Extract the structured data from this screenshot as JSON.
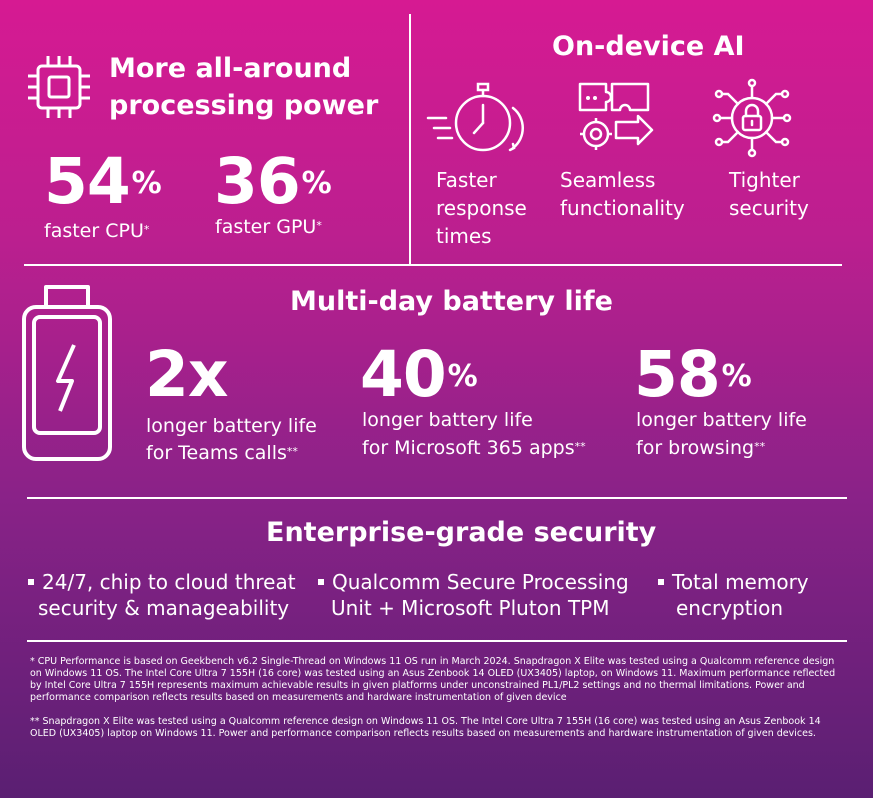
{
  "processing": {
    "title_line1": "More all-around",
    "title_line2": "processing power",
    "cpu_value": "54",
    "cpu_unit": "%",
    "cpu_label": "faster CPU",
    "cpu_mark": "*",
    "gpu_value": "36",
    "gpu_unit": "%",
    "gpu_label": "faster GPU",
    "gpu_mark": "*"
  },
  "ai": {
    "title": "On-device AI",
    "items": [
      {
        "label": "Faster response times",
        "icon": "stopwatch-icon"
      },
      {
        "label": "Seamless functionality",
        "icon": "puzzle-gear-icon"
      },
      {
        "label": "Tighter security",
        "icon": "lock-circuit-icon"
      }
    ]
  },
  "battery": {
    "title": "Multi-day battery life",
    "stats": [
      {
        "value": "2x",
        "unit": "",
        "line1": "longer battery life",
        "line2": "for Teams calls",
        "mark": "**"
      },
      {
        "value": "40",
        "unit": "%",
        "line1": "longer battery life",
        "line2": "for Microsoft 365 apps",
        "mark": "**"
      },
      {
        "value": "58",
        "unit": "%",
        "line1": "longer battery life",
        "line2": "for browsing",
        "mark": "**"
      }
    ]
  },
  "security": {
    "title": "Enterprise-grade security",
    "items": [
      {
        "line1": "24/7, chip to cloud threat",
        "line2": "security & manageability"
      },
      {
        "line1": "Qualcomm Secure Processing",
        "line2": "Unit + Microsoft Pluton TPM"
      },
      {
        "line1": "Total memory",
        "line2": "encryption"
      }
    ]
  },
  "footnotes": {
    "note1": "* CPU Performance is based on Geekbench v6.2 Single-Thread on Windows 11 OS run in March 2024. Snapdragon X Elite was tested using a Qualcomm reference design on Windows 11 OS. The Intel Core Ultra 7 155H (16 core) was tested using an Asus Zenbook 14 OLED (UX3405) laptop, on Windows 11. Maximum performance reflected by Intel Core Ultra 7 155H represents maximum achievable results in given platforms under unconstrained PL1/PL2 settings and no thermal limitations. Power and performance comparison reflects results based on measurements and hardware instrumentation of given device",
    "note2": "** Snapdragon X Elite was tested using a Qualcomm reference design on Windows 11 OS. The Intel Core Ultra 7 155H (16 core) was tested using an Asus Zenbook 14 OLED (UX3405) laptop on Windows 11. Power and performance comparison reflects results based on measurements and hardware instrumentation of given devices."
  },
  "colors": {
    "gradient_top": "#d61a92",
    "gradient_bottom": "#5a1f72",
    "text": "#ffffff"
  }
}
